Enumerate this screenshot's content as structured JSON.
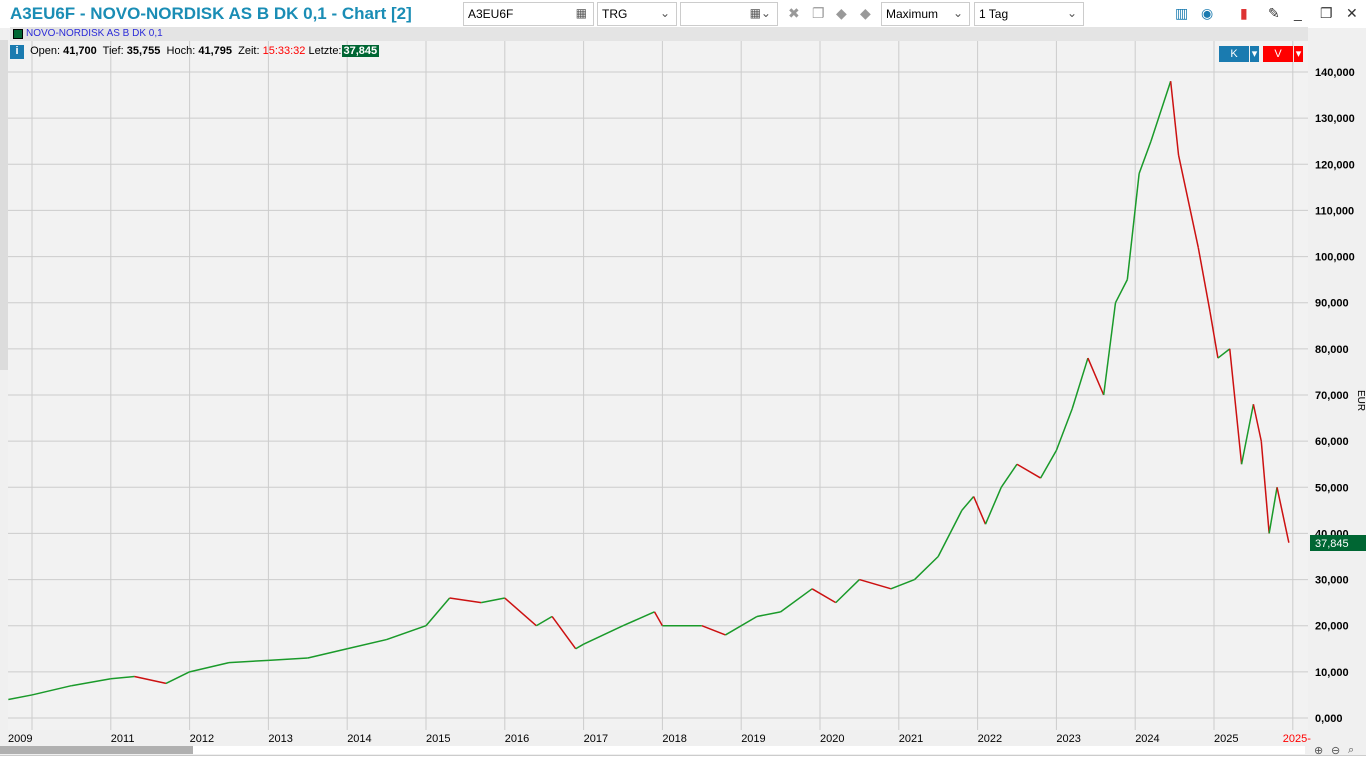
{
  "window": {
    "title": "A3EU6F - NOVO-NORDISK AS B  DK 0,1 - Chart [2]"
  },
  "toolbar": {
    "symbol": "A3EU6F",
    "exchange": "TRG",
    "date": "",
    "range": "Maximum",
    "interval": "1 Tag"
  },
  "legend": {
    "series_name": "NOVO-NORDISK AS B  DK 0,1",
    "series_color": "#006633"
  },
  "quote": {
    "open_label": "Open:",
    "open": "41,700",
    "low_label": "Tief:",
    "low": "35,755",
    "high_label": "Hoch:",
    "high": "41,795",
    "time_label": "Zeit:",
    "time": "15:33:32",
    "last_label": "Letzte:",
    "last": "37,845"
  },
  "trade": {
    "buy": "K",
    "sell": "V"
  },
  "chart_data": {
    "type": "line",
    "style": "candlestick-like daily price",
    "ylabel": "EUR",
    "ylim": [
      0,
      140000
    ],
    "yticks": [
      "0,000",
      "10,000",
      "20,000",
      "30,000",
      "40,000",
      "50,000",
      "60,000",
      "70,000",
      "80,000",
      "90,000",
      "100,000",
      "110,000",
      "120,000",
      "130,000",
      "140,000"
    ],
    "xticks": [
      "2009",
      "2011",
      "2012",
      "2013",
      "2014",
      "2015",
      "2016",
      "2017",
      "2018",
      "2019",
      "2020",
      "2021",
      "2022",
      "2023",
      "2024",
      "2025",
      "2025-"
    ],
    "last_price_label": "37,845",
    "colors": {
      "up": "#1a9a2a",
      "down": "#cc1111"
    },
    "grid": true,
    "x": [
      2009.7,
      2010.0,
      2010.5,
      2011.0,
      2011.3,
      2011.7,
      2012.0,
      2012.5,
      2013.0,
      2013.5,
      2014.0,
      2014.5,
      2015.0,
      2015.3,
      2015.7,
      2016.0,
      2016.4,
      2016.6,
      2016.9,
      2017.0,
      2017.5,
      2017.9,
      2018.0,
      2018.5,
      2018.8,
      2019.2,
      2019.5,
      2019.9,
      2020.2,
      2020.5,
      2020.9,
      2021.2,
      2021.5,
      2021.8,
      2021.95,
      2022.1,
      2022.3,
      2022.5,
      2022.8,
      2023.0,
      2023.2,
      2023.4,
      2023.6,
      2023.75,
      2023.9,
      2024.05,
      2024.2,
      2024.45,
      2024.55,
      2024.7,
      2024.8,
      2024.95,
      2025.05,
      2025.2,
      2025.35,
      2025.5,
      2025.6,
      2025.7,
      2025.8,
      2025.95
    ],
    "y": [
      4000,
      5000,
      7000,
      8500,
      9000,
      7500,
      10000,
      12000,
      12500,
      13000,
      15000,
      17000,
      20000,
      26000,
      25000,
      26000,
      20000,
      22000,
      15000,
      16000,
      20000,
      23000,
      20000,
      20000,
      18000,
      22000,
      23000,
      28000,
      25000,
      30000,
      28000,
      30000,
      35000,
      45000,
      48000,
      42000,
      50000,
      55000,
      52000,
      58000,
      67000,
      78000,
      70000,
      90000,
      95000,
      118000,
      125000,
      138000,
      122000,
      110000,
      102000,
      88000,
      78000,
      80000,
      55000,
      68000,
      60000,
      40000,
      50000,
      38000
    ]
  }
}
